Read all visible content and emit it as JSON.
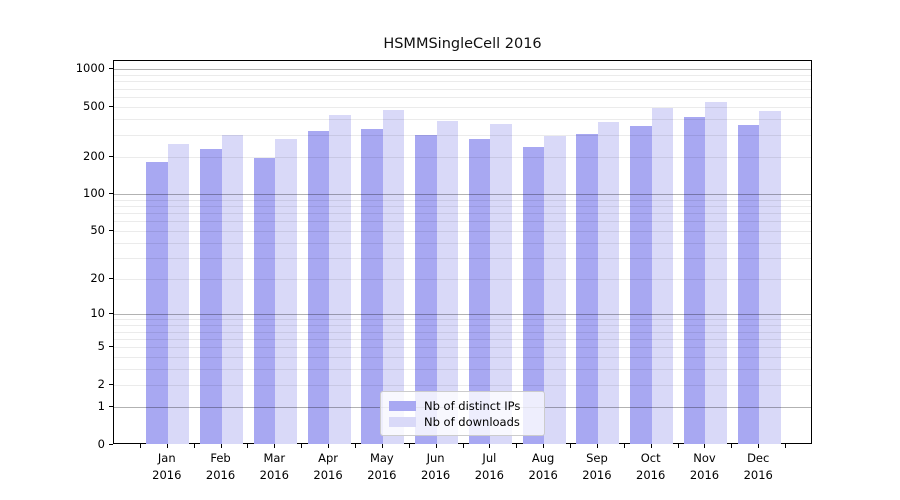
{
  "chart_data": {
    "type": "bar",
    "title": "HSMMSingleCell 2016",
    "xlabel": "",
    "ylabel": "",
    "categories": [
      "Jan 2016",
      "Feb 2016",
      "Mar 2016",
      "Apr 2016",
      "May 2016",
      "Jun 2016",
      "Jul 2016",
      "Aug 2016",
      "Sep 2016",
      "Oct 2016",
      "Nov 2016",
      "Dec 2016"
    ],
    "series": [
      {
        "name": "Nb of distinct IPs",
        "color": "#a8a8f2",
        "values": [
          180,
          230,
          196,
          321,
          331,
          296,
          279,
          240,
          306,
          351,
          419,
          356
        ]
      },
      {
        "name": "Nb of downloads",
        "color": "#d9d9f8",
        "values": [
          251,
          296,
          279,
          431,
          476,
          386,
          363,
          294,
          377,
          487,
          546,
          464
        ]
      }
    ],
    "yscale": "log1p",
    "ylim": [
      0,
      1000
    ],
    "ytick_values": [
      0,
      1,
      2,
      5,
      10,
      20,
      50,
      100,
      200,
      500,
      1000
    ],
    "grid_minor_values": [
      2,
      3,
      4,
      5,
      6,
      7,
      8,
      9,
      20,
      30,
      40,
      50,
      60,
      70,
      80,
      90,
      200,
      300,
      400,
      500,
      600,
      700,
      800,
      900
    ],
    "grid_major_values": [
      1,
      10,
      100,
      1000
    ],
    "grid": true,
    "legend": {
      "position": "lower center",
      "entries": [
        "Nb of distinct IPs",
        "Nb of downloads"
      ]
    }
  }
}
